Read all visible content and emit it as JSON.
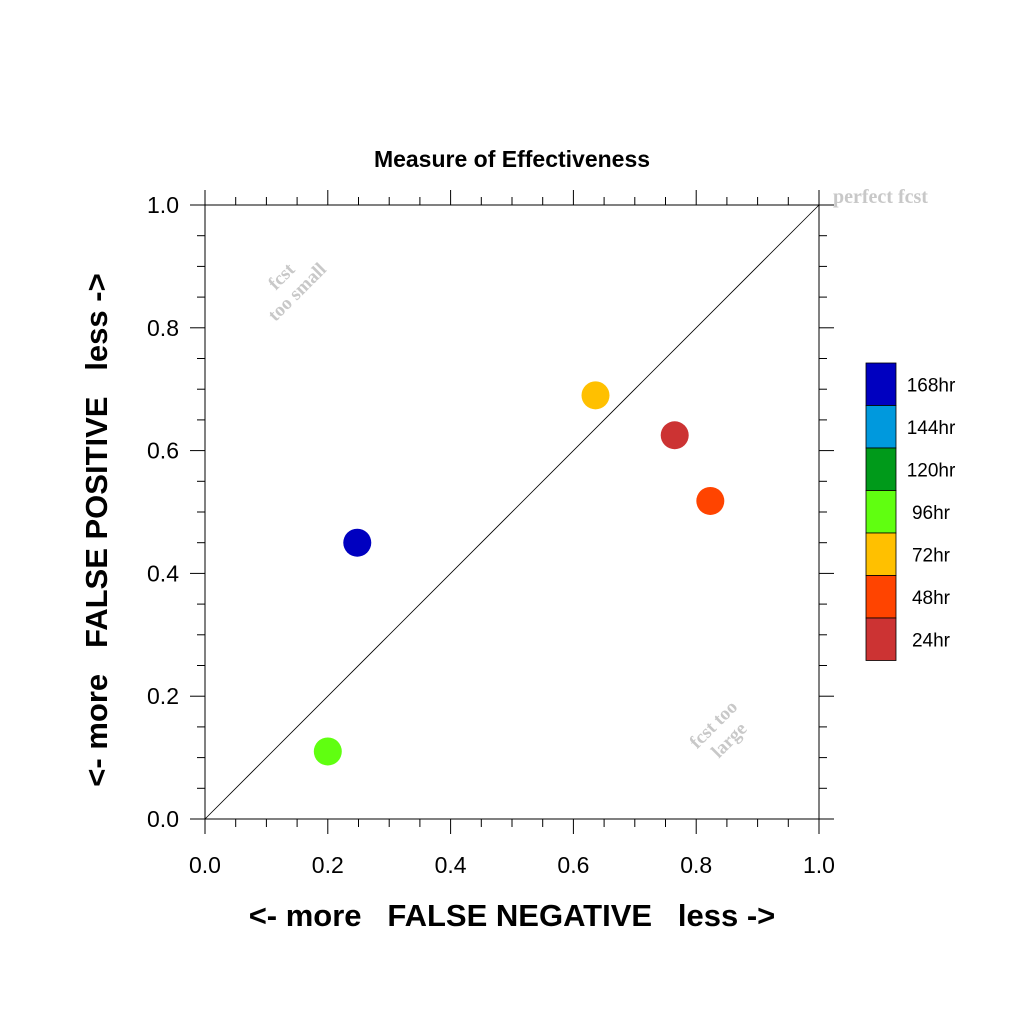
{
  "chart_data": {
    "type": "scatter",
    "title": "Measure of Effectiveness",
    "xlabel": "<- more   FALSE NEGATIVE   less ->",
    "ylabel": "<- more   FALSE POSITIVE   less ->",
    "xlim": [
      0.0,
      1.0
    ],
    "ylim": [
      0.0,
      1.0
    ],
    "x_ticks": [
      "0.0",
      "0.2",
      "0.4",
      "0.6",
      "0.8",
      "1.0"
    ],
    "y_ticks": [
      "0.0",
      "0.2",
      "0.4",
      "0.6",
      "0.8",
      "1.0"
    ],
    "grid": false,
    "diagonal_line": true,
    "legend_position": "right",
    "annotations": {
      "perfect": "perfect fcst",
      "small_line1": "fcst",
      "small_line2": "too small",
      "large_line1": "fcst too",
      "large_line2": "large"
    },
    "legend": [
      {
        "label": "168hr",
        "color": "#0000c0"
      },
      {
        "label": "144hr",
        "color": "#0099dd"
      },
      {
        "label": "120hr",
        "color": "#009a1a"
      },
      {
        "label": "96hr",
        "color": "#60ff10"
      },
      {
        "label": "72hr",
        "color": "#ffc000"
      },
      {
        "label": "48hr",
        "color": "#ff4400"
      },
      {
        "label": "24hr",
        "color": "#cc3333"
      }
    ],
    "series": [
      {
        "name": "168hr",
        "color": "#0000c0",
        "x": 0.248,
        "y": 0.45
      },
      {
        "name": "96hr",
        "color": "#60ff10",
        "x": 0.2,
        "y": 0.11
      },
      {
        "name": "72hr",
        "color": "#ffc000",
        "x": 0.636,
        "y": 0.69
      },
      {
        "name": "24hr",
        "color": "#cc3333",
        "x": 0.765,
        "y": 0.625
      },
      {
        "name": "48hr",
        "color": "#ff4400",
        "x": 0.823,
        "y": 0.518
      }
    ]
  }
}
